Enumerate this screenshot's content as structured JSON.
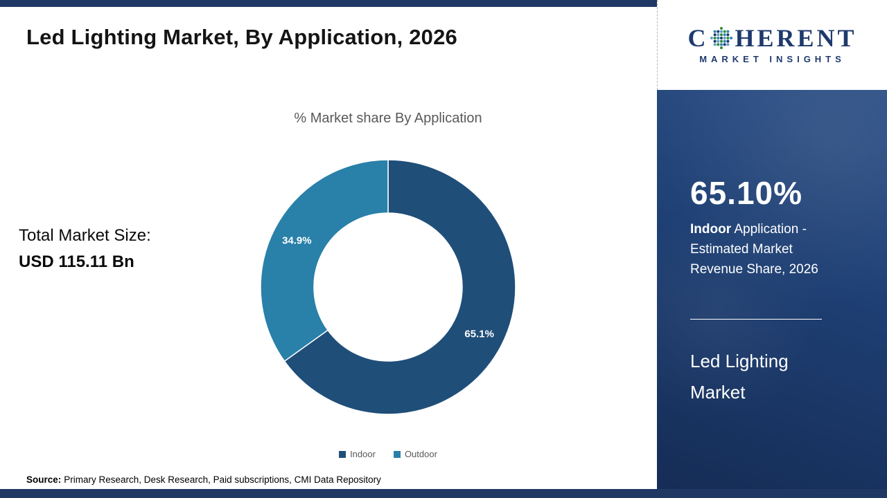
{
  "page": {
    "title": "Led Lighting Market, By Application, 2026",
    "source_label": "Source:",
    "source_text": "Primary Research, Desk Research, Paid subscriptions, CMI Data Repository"
  },
  "left_panel": {
    "total_market_label": "Total Market Size:",
    "total_market_value": "USD 115.11 Bn"
  },
  "logo": {
    "name_prefix": "C",
    "name_suffix": "HERENT",
    "tagline": "MARKET INSIGHTS"
  },
  "right_panel": {
    "stat_value": "65.10%",
    "stat_label_bold": "Indoor",
    "stat_label_rest": " Application - Estimated Market Revenue Share, 2026",
    "brand_text": "Led Lighting Market"
  },
  "chart_data": {
    "type": "pie",
    "donut": true,
    "title": "% Market share By Application",
    "categories": [
      "Indoor",
      "Outdoor"
    ],
    "values": [
      65.1,
      34.9
    ],
    "data_labels": [
      "65.1%",
      "34.9%"
    ],
    "colors": [
      "#1f4e79",
      "#2980a9"
    ],
    "legend_position": "bottom",
    "start_angle_deg": 0,
    "direction": "clockwise"
  },
  "colors": {
    "accent_navy": "#1f3864",
    "panel_navy": "#1e3f73",
    "indoor": "#1f4e79",
    "outdoor": "#2980a9"
  }
}
